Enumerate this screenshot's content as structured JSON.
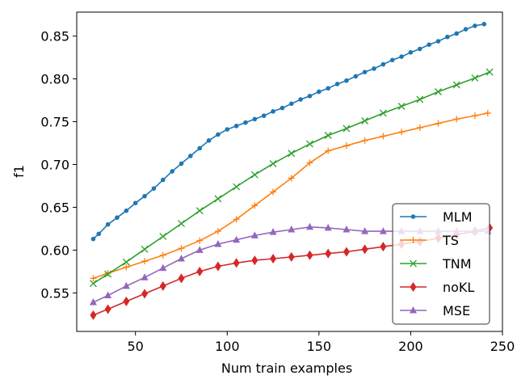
{
  "chart_data": {
    "type": "line",
    "xlabel": "Num train examples",
    "ylabel": "f1",
    "xlim": [
      18,
      250
    ],
    "ylim": [
      0.505,
      0.878
    ],
    "xticks": [
      50,
      100,
      150,
      200,
      250
    ],
    "xtick_labels": [
      "50",
      "100",
      "150",
      "200",
      "250"
    ],
    "yticks": [
      0.55,
      0.6,
      0.65,
      0.7,
      0.75,
      0.8,
      0.85
    ],
    "ytick_labels": [
      "0.55",
      "0.60",
      "0.65",
      "0.70",
      "0.75",
      "0.80",
      "0.85"
    ],
    "grid": false,
    "legend_position": "lower-right",
    "series": [
      {
        "name": "MLM",
        "color": "#1f77b4",
        "marker": "dot",
        "points": [
          [
            27,
            0.613
          ],
          [
            30,
            0.619
          ],
          [
            35,
            0.63
          ],
          [
            40,
            0.638
          ],
          [
            45,
            0.646
          ],
          [
            50,
            0.655
          ],
          [
            55,
            0.663
          ],
          [
            60,
            0.672
          ],
          [
            65,
            0.682
          ],
          [
            70,
            0.692
          ],
          [
            75,
            0.701
          ],
          [
            80,
            0.71
          ],
          [
            85,
            0.719
          ],
          [
            90,
            0.728
          ],
          [
            95,
            0.735
          ],
          [
            100,
            0.741
          ],
          [
            105,
            0.745
          ],
          [
            110,
            0.749
          ],
          [
            115,
            0.753
          ],
          [
            120,
            0.757
          ],
          [
            125,
            0.762
          ],
          [
            130,
            0.766
          ],
          [
            135,
            0.771
          ],
          [
            140,
            0.776
          ],
          [
            145,
            0.78
          ],
          [
            150,
            0.785
          ],
          [
            155,
            0.789
          ],
          [
            160,
            0.794
          ],
          [
            165,
            0.798
          ],
          [
            170,
            0.803
          ],
          [
            175,
            0.808
          ],
          [
            180,
            0.812
          ],
          [
            185,
            0.817
          ],
          [
            190,
            0.822
          ],
          [
            195,
            0.826
          ],
          [
            200,
            0.831
          ],
          [
            205,
            0.835
          ],
          [
            210,
            0.84
          ],
          [
            215,
            0.844
          ],
          [
            220,
            0.849
          ],
          [
            225,
            0.853
          ],
          [
            230,
            0.858
          ],
          [
            235,
            0.862
          ],
          [
            240,
            0.864
          ]
        ]
      },
      {
        "name": "TS",
        "color": "#ff7f0e",
        "marker": "plus",
        "points": [
          [
            27,
            0.567
          ],
          [
            35,
            0.573
          ],
          [
            45,
            0.58
          ],
          [
            55,
            0.587
          ],
          [
            65,
            0.594
          ],
          [
            75,
            0.602
          ],
          [
            85,
            0.611
          ],
          [
            95,
            0.622
          ],
          [
            105,
            0.636
          ],
          [
            115,
            0.652
          ],
          [
            125,
            0.668
          ],
          [
            135,
            0.684
          ],
          [
            145,
            0.702
          ],
          [
            155,
            0.716
          ],
          [
            165,
            0.722
          ],
          [
            175,
            0.728
          ],
          [
            185,
            0.733
          ],
          [
            195,
            0.738
          ],
          [
            205,
            0.743
          ],
          [
            215,
            0.748
          ],
          [
            225,
            0.753
          ],
          [
            235,
            0.757
          ],
          [
            242,
            0.76
          ]
        ]
      },
      {
        "name": "TNM",
        "color": "#2ca02c",
        "marker": "x",
        "points": [
          [
            27,
            0.561
          ],
          [
            35,
            0.572
          ],
          [
            45,
            0.586
          ],
          [
            55,
            0.601
          ],
          [
            65,
            0.616
          ],
          [
            75,
            0.631
          ],
          [
            85,
            0.646
          ],
          [
            95,
            0.66
          ],
          [
            105,
            0.674
          ],
          [
            115,
            0.688
          ],
          [
            125,
            0.701
          ],
          [
            135,
            0.713
          ],
          [
            145,
            0.724
          ],
          [
            155,
            0.734
          ],
          [
            165,
            0.742
          ],
          [
            175,
            0.751
          ],
          [
            185,
            0.76
          ],
          [
            195,
            0.768
          ],
          [
            205,
            0.776
          ],
          [
            215,
            0.785
          ],
          [
            225,
            0.793
          ],
          [
            235,
            0.801
          ],
          [
            243,
            0.808
          ]
        ]
      },
      {
        "name": "noKL",
        "color": "#d62728",
        "marker": "diamond",
        "points": [
          [
            27,
            0.524
          ],
          [
            35,
            0.531
          ],
          [
            45,
            0.54
          ],
          [
            55,
            0.549
          ],
          [
            65,
            0.558
          ],
          [
            75,
            0.567
          ],
          [
            85,
            0.575
          ],
          [
            95,
            0.581
          ],
          [
            105,
            0.585
          ],
          [
            115,
            0.588
          ],
          [
            125,
            0.59
          ],
          [
            135,
            0.592
          ],
          [
            145,
            0.594
          ],
          [
            155,
            0.596
          ],
          [
            165,
            0.598
          ],
          [
            175,
            0.601
          ],
          [
            185,
            0.604
          ],
          [
            195,
            0.607
          ],
          [
            205,
            0.61
          ],
          [
            215,
            0.614
          ],
          [
            225,
            0.618
          ],
          [
            235,
            0.622
          ],
          [
            243,
            0.626
          ]
        ]
      },
      {
        "name": "MSE",
        "color": "#9467bd",
        "marker": "triangle",
        "points": [
          [
            27,
            0.539
          ],
          [
            35,
            0.547
          ],
          [
            45,
            0.558
          ],
          [
            55,
            0.568
          ],
          [
            65,
            0.579
          ],
          [
            75,
            0.59
          ],
          [
            85,
            0.6
          ],
          [
            95,
            0.607
          ],
          [
            105,
            0.612
          ],
          [
            115,
            0.617
          ],
          [
            125,
            0.621
          ],
          [
            135,
            0.624
          ],
          [
            145,
            0.627
          ],
          [
            155,
            0.626
          ],
          [
            165,
            0.624
          ],
          [
            175,
            0.622
          ],
          [
            185,
            0.622
          ],
          [
            195,
            0.622
          ],
          [
            205,
            0.622
          ],
          [
            215,
            0.622
          ],
          [
            225,
            0.622
          ],
          [
            235,
            0.622
          ],
          [
            242,
            0.622
          ]
        ]
      }
    ]
  }
}
